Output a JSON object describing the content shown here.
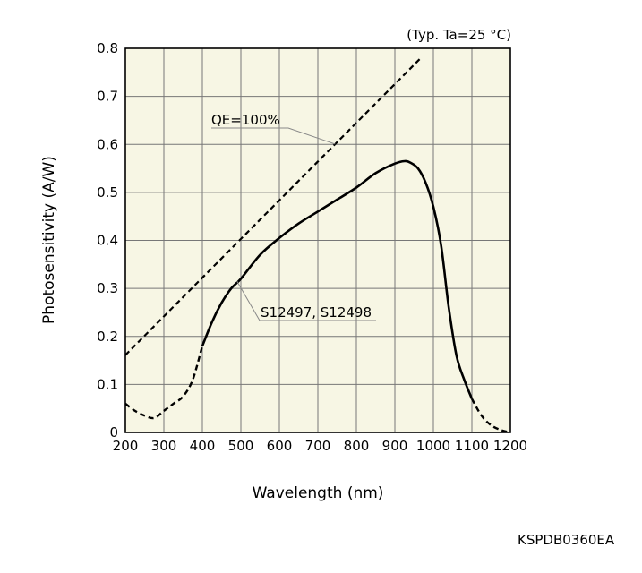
{
  "chart_data": {
    "type": "line",
    "condition_note": "(Typ. Ta=25 °C)",
    "xlabel": "Wavelength (nm)",
    "ylabel": "Photosensitivity (A/W)",
    "xlim": [
      200,
      1200
    ],
    "ylim": [
      0,
      0.8
    ],
    "x_ticks": [
      "200",
      "300",
      "400",
      "500",
      "600",
      "700",
      "800",
      "900",
      "1000",
      "1100",
      "1200"
    ],
    "y_ticks": [
      "0",
      "0.1",
      "0.2",
      "0.3",
      "0.4",
      "0.5",
      "0.6",
      "0.7",
      "0.8"
    ],
    "grid": true,
    "series": [
      {
        "name": "S12497, S12498",
        "style": "solid-with-dashed-ends",
        "color": "#000000",
        "low_dashed": {
          "x": [
            200,
            225,
            250,
            275,
            300,
            325,
            350,
            375,
            400
          ],
          "y": [
            0.06,
            0.045,
            0.035,
            0.03,
            0.045,
            0.06,
            0.075,
            0.11,
            0.18
          ]
        },
        "solid": {
          "x": [
            400,
            425,
            450,
            475,
            500,
            550,
            600,
            650,
            700,
            750,
            800,
            850,
            900,
            925,
            940,
            960,
            980,
            1000,
            1020,
            1040,
            1060,
            1080,
            1100
          ],
          "y": [
            0.18,
            0.23,
            0.27,
            0.3,
            0.32,
            0.37,
            0.405,
            0.435,
            0.46,
            0.485,
            0.51,
            0.54,
            0.56,
            0.565,
            0.562,
            0.55,
            0.52,
            0.47,
            0.39,
            0.26,
            0.16,
            0.11,
            0.07
          ]
        },
        "high_dashed": {
          "x": [
            1100,
            1125,
            1150,
            1175,
            1200
          ],
          "y": [
            0.07,
            0.035,
            0.015,
            0.005,
            0
          ]
        }
      },
      {
        "name": "QE=100%",
        "style": "dashed",
        "color": "#000000",
        "x": [
          200,
          970
        ],
        "y": [
          0.161,
          0.782
        ]
      }
    ]
  },
  "figure_code": "KSPDB0360EA"
}
